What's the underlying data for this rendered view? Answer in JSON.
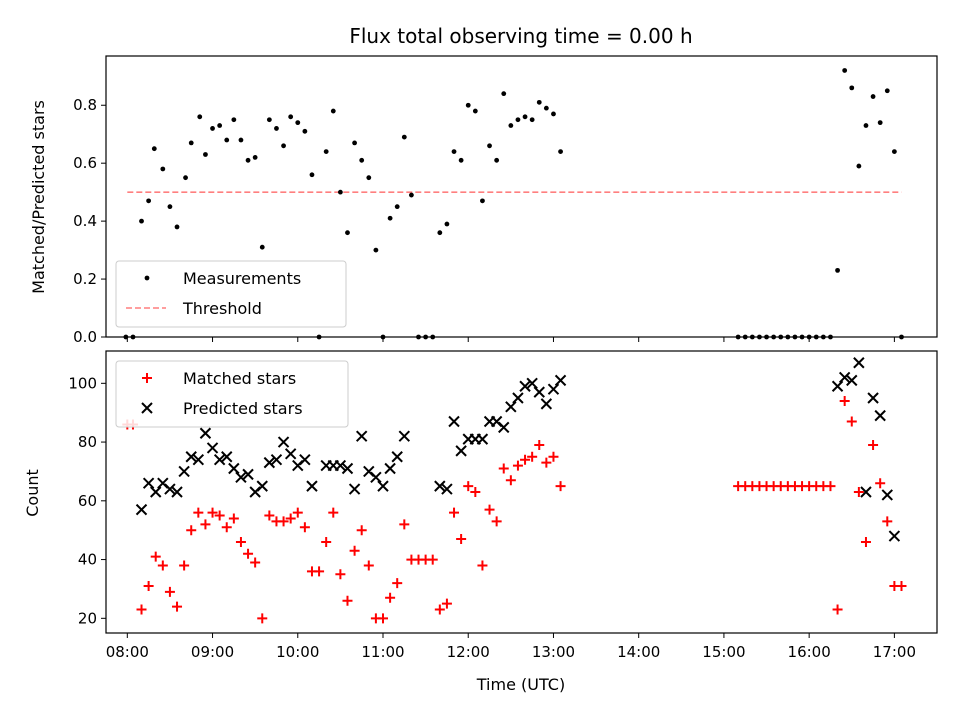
{
  "title": "Flux total observing time = 0.00 h",
  "colors": {
    "threshold": "#ff7f7f",
    "matched": "#ff0000",
    "predicted": "#000000",
    "measurement": "#000000"
  },
  "chart_data": [
    {
      "type": "scatter",
      "ylabel": "Matched/Predicted stars",
      "xlim": [
        "07:45",
        "17:30"
      ],
      "ylim": [
        0,
        0.97
      ],
      "yticks": [
        "0.0",
        "0.2",
        "0.4",
        "0.6",
        "0.8"
      ],
      "legend": {
        "placement": "lower-left",
        "entries": [
          "Measurements",
          "Threshold"
        ]
      },
      "threshold": {
        "name": "Threshold",
        "x": [
          "08:00",
          "17:05"
        ],
        "y": 0.5
      },
      "series": [
        {
          "name": "Measurements",
          "marker": "dot",
          "x": [
            "07:59",
            "08:04",
            "08:10",
            "08:15",
            "08:19",
            "08:25",
            "08:30",
            "08:35",
            "08:41",
            "08:45",
            "08:51",
            "08:55",
            "09:00",
            "09:05",
            "09:10",
            "09:15",
            "09:20",
            "09:25",
            "09:30",
            "09:35",
            "09:40",
            "09:45",
            "09:50",
            "09:55",
            "10:00",
            "10:05",
            "10:10",
            "10:15",
            "10:20",
            "10:25",
            "10:30",
            "10:35",
            "10:40",
            "10:45",
            "10:50",
            "10:55",
            "11:00",
            "11:05",
            "11:10",
            "11:15",
            "11:20",
            "11:25",
            "11:30",
            "11:35",
            "11:40",
            "11:45",
            "11:50",
            "11:55",
            "12:00",
            "12:05",
            "12:10",
            "12:15",
            "12:20",
            "12:25",
            "12:30",
            "12:35",
            "12:40",
            "12:45",
            "12:50",
            "12:55",
            "13:00",
            "13:05",
            "15:10",
            "15:15",
            "15:20",
            "15:25",
            "15:30",
            "15:35",
            "15:40",
            "15:45",
            "15:50",
            "15:55",
            "16:00",
            "16:05",
            "16:10",
            "16:15",
            "16:20",
            "16:25",
            "16:30",
            "16:35",
            "16:40",
            "16:45",
            "16:50",
            "16:55",
            "17:00",
            "17:05"
          ],
          "y": [
            0.0,
            0.0,
            0.4,
            0.47,
            0.65,
            0.58,
            0.45,
            0.38,
            0.55,
            0.67,
            0.76,
            0.63,
            0.72,
            0.73,
            0.68,
            0.75,
            0.68,
            0.61,
            0.62,
            0.31,
            0.75,
            0.72,
            0.66,
            0.76,
            0.74,
            0.71,
            0.56,
            0.0,
            0.64,
            0.78,
            0.5,
            0.36,
            0.67,
            0.61,
            0.55,
            0.3,
            0.0,
            0.41,
            0.45,
            0.69,
            0.49,
            0.0,
            0.0,
            0.0,
            0.36,
            0.39,
            0.64,
            0.61,
            0.8,
            0.78,
            0.47,
            0.66,
            0.61,
            0.84,
            0.73,
            0.75,
            0.76,
            0.75,
            0.81,
            0.79,
            0.77,
            0.64,
            0.0,
            0.0,
            0.0,
            0.0,
            0.0,
            0.0,
            0.0,
            0.0,
            0.0,
            0.0,
            0.0,
            0.0,
            0.0,
            0.0,
            0.23,
            0.92,
            0.86,
            0.59,
            0.73,
            0.83,
            0.74,
            0.85,
            0.64,
            0.0
          ]
        }
      ]
    },
    {
      "type": "scatter",
      "ylabel": "Count",
      "xlabel": "Time (UTC)",
      "xlim": [
        "07:45",
        "17:30"
      ],
      "ylim": [
        15,
        111
      ],
      "yticks": [
        "20",
        "40",
        "60",
        "80",
        "100"
      ],
      "xticks": [
        "08:00",
        "09:00",
        "10:00",
        "11:00",
        "12:00",
        "13:00",
        "14:00",
        "15:00",
        "16:00",
        "17:00"
      ],
      "legend": {
        "placement": "top-left",
        "entries": [
          "Matched stars",
          "Predicted stars"
        ]
      },
      "series": [
        {
          "name": "Matched stars",
          "marker": "+",
          "x": [
            "08:00",
            "08:04",
            "08:10",
            "08:15",
            "08:20",
            "08:25",
            "08:30",
            "08:35",
            "08:40",
            "08:45",
            "08:50",
            "08:55",
            "09:00",
            "09:05",
            "09:10",
            "09:15",
            "09:20",
            "09:25",
            "09:30",
            "09:35",
            "09:40",
            "09:45",
            "09:50",
            "09:55",
            "10:00",
            "10:05",
            "10:10",
            "10:15",
            "10:20",
            "10:25",
            "10:30",
            "10:35",
            "10:40",
            "10:45",
            "10:50",
            "10:55",
            "11:00",
            "11:05",
            "11:10",
            "11:15",
            "11:20",
            "11:25",
            "11:30",
            "11:35",
            "11:40",
            "11:45",
            "11:50",
            "11:55",
            "12:00",
            "12:05",
            "12:10",
            "12:15",
            "12:20",
            "12:25",
            "12:30",
            "12:35",
            "12:40",
            "12:45",
            "12:50",
            "12:55",
            "13:00",
            "13:05",
            "15:10",
            "15:15",
            "15:20",
            "15:25",
            "15:30",
            "15:35",
            "15:40",
            "15:45",
            "15:50",
            "15:55",
            "16:00",
            "16:05",
            "16:10",
            "16:15",
            "16:20",
            "16:25",
            "16:30",
            "16:35",
            "16:40",
            "16:45",
            "16:50",
            "16:55",
            "17:00",
            "17:05"
          ],
          "y": [
            86,
            86,
            23,
            31,
            41,
            38,
            29,
            24,
            38,
            50,
            56,
            52,
            56,
            55,
            51,
            54,
            46,
            42,
            39,
            20,
            55,
            53,
            53,
            54,
            56,
            51,
            36,
            36,
            46,
            56,
            35,
            26,
            43,
            50,
            38,
            20,
            20,
            27,
            32,
            52,
            40,
            40,
            40,
            40,
            23,
            25,
            56,
            47,
            65,
            63,
            38,
            57,
            53,
            71,
            67,
            72,
            74,
            75,
            79,
            73,
            75,
            65,
            65,
            65,
            65,
            65,
            65,
            65,
            65,
            65,
            65,
            65,
            65,
            65,
            65,
            65,
            23,
            94,
            87,
            63,
            46,
            79,
            66,
            53,
            31,
            31
          ]
        },
        {
          "name": "Predicted stars",
          "marker": "x",
          "x": [
            "08:10",
            "08:15",
            "08:20",
            "08:25",
            "08:30",
            "08:35",
            "08:40",
            "08:45",
            "08:50",
            "08:55",
            "09:00",
            "09:05",
            "09:10",
            "09:15",
            "09:20",
            "09:25",
            "09:30",
            "09:35",
            "09:40",
            "09:45",
            "09:50",
            "09:55",
            "10:00",
            "10:05",
            "10:10",
            "10:20",
            "10:25",
            "10:30",
            "10:35",
            "10:40",
            "10:45",
            "10:50",
            "10:55",
            "11:00",
            "11:05",
            "11:10",
            "11:15",
            "11:40",
            "11:45",
            "11:50",
            "11:55",
            "12:00",
            "12:05",
            "12:10",
            "12:15",
            "12:20",
            "12:25",
            "12:30",
            "12:35",
            "12:40",
            "12:45",
            "12:50",
            "12:55",
            "13:00",
            "13:05",
            "16:20",
            "16:25",
            "16:30",
            "16:35",
            "16:40",
            "16:45",
            "16:50",
            "16:55",
            "17:00"
          ],
          "y": [
            57,
            66,
            63,
            66,
            64,
            63,
            70,
            75,
            74,
            83,
            78,
            74,
            75,
            71,
            68,
            69,
            63,
            65,
            73,
            74,
            80,
            76,
            72,
            74,
            65,
            72,
            72,
            72,
            71,
            64,
            82,
            70,
            68,
            65,
            71,
            75,
            82,
            65,
            64,
            87,
            77,
            81,
            81,
            81,
            87,
            87,
            85,
            92,
            95,
            99,
            100,
            97,
            93,
            98,
            101,
            99,
            102,
            101,
            107,
            63,
            95,
            89,
            62,
            48
          ]
        }
      ]
    }
  ]
}
